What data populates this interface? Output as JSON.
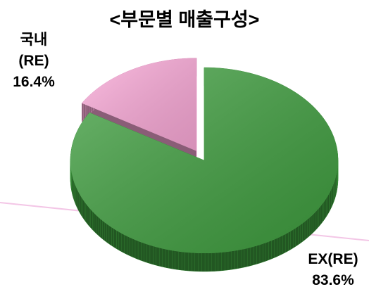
{
  "chart_data": {
    "type": "pie",
    "title": "<부문별 매출구성>",
    "categories": [
      "국내 (RE)",
      "EX(RE)"
    ],
    "values": [
      16.4,
      83.6
    ],
    "value_labels": [
      "16.4%",
      "83.6%"
    ],
    "colors": [
      "#fcaad9",
      "#3f9f3f"
    ],
    "exploded": [
      true,
      false
    ]
  }
}
